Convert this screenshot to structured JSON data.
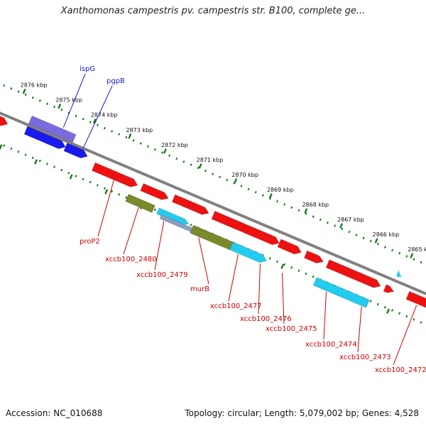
{
  "title": "Xanthomonas campestris pv. campestris str. B100, complete ge...",
  "footer": {
    "accession": "Accession: NC_010688",
    "topology": "Topology: circular; Length: 5,079,002 bp; Genes: 4,528"
  },
  "ticks": [
    {
      "label": "2876 kbp",
      "t": 0.045
    },
    {
      "label": "2875 kbp",
      "t": 0.125
    },
    {
      "label": "2874 kbp",
      "t": 0.205
    },
    {
      "label": "2873 kbp",
      "t": 0.285
    },
    {
      "label": "2872 kbp",
      "t": 0.365
    },
    {
      "label": "2871 kbp",
      "t": 0.445
    },
    {
      "label": "2870 kbp",
      "t": 0.525
    },
    {
      "label": "2869 kbp",
      "t": 0.605
    },
    {
      "label": "2868 kbp",
      "t": 0.685
    },
    {
      "label": "2867 kbp",
      "t": 0.765
    },
    {
      "label": "2866 kbp",
      "t": 0.845
    },
    {
      "label": "2865 kbp",
      "t": 0.925
    }
  ],
  "colors": {
    "backbone": "#808080",
    "ticks": "#1a7a1a",
    "red": "#ee1111",
    "blue": "#1a1aee",
    "purple": "#7a6ae0",
    "olive": "#7a8a2a",
    "cyan": "#22ccee",
    "steel": "#8aa0c0",
    "label_red": "#cc0000",
    "label_blue": "#1a1acc"
  },
  "labels": {
    "top": [
      {
        "text": "ispG",
        "color": "label_blue"
      },
      {
        "text": "pgpB",
        "color": "label_blue"
      }
    ],
    "bottom": [
      {
        "text": "proP2"
      },
      {
        "text": "xccb100_2480"
      },
      {
        "text": "xccb100_2479"
      },
      {
        "text": "murB"
      },
      {
        "text": "xccb100_2477"
      },
      {
        "text": "xccb100_2476"
      },
      {
        "text": "xccb100_2475"
      },
      {
        "text": "xccb100_2474"
      },
      {
        "text": "xccb100_2473"
      },
      {
        "text": "xccb100_2472"
      }
    ]
  }
}
